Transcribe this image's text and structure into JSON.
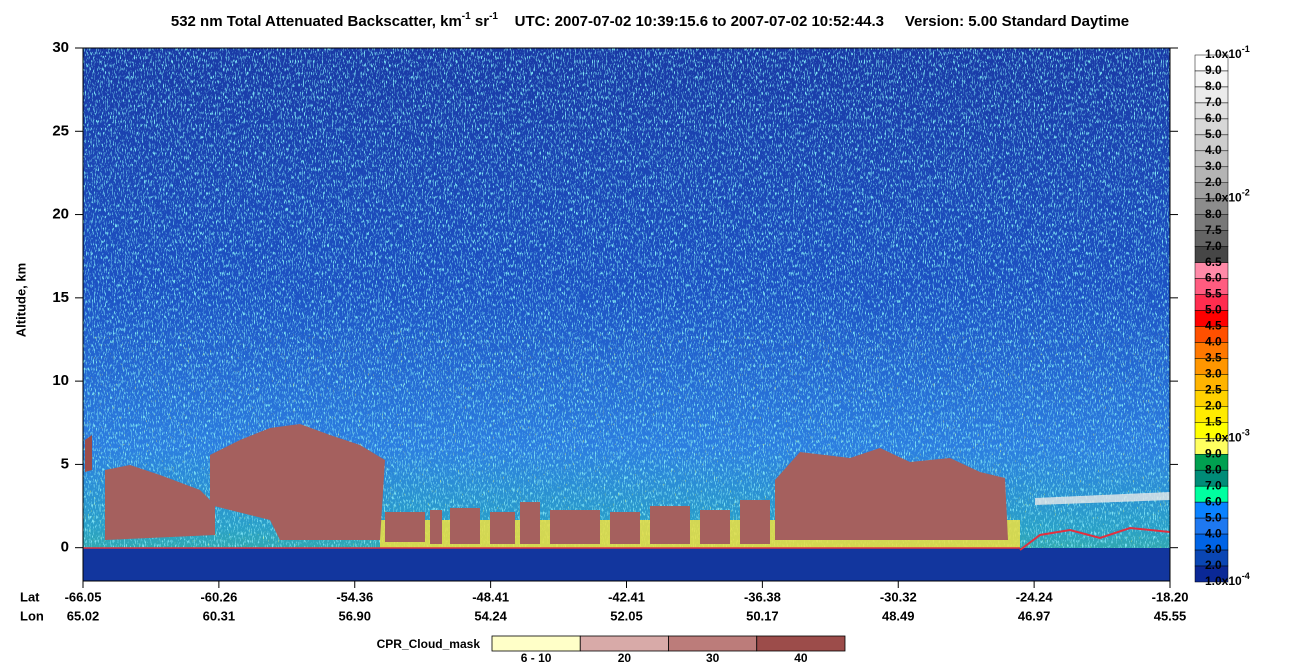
{
  "chart_data": {
    "type": "curtain",
    "title": {
      "name": "532 nm Total Attenuated Backscatter, km",
      "unit_exp1": "-1",
      "unit_mid": " sr",
      "unit_exp2": "-1",
      "time": "UTC:  2007-07-02 10:39:15.6  to  2007-07-02 10:52:44.3",
      "version": "Version: 5.00  Standard  Daytime"
    },
    "y_label": "Altitude, km",
    "ylim": [
      -2,
      30
    ],
    "yticks": [
      0,
      5,
      10,
      15,
      20,
      25,
      30
    ],
    "x_row_labels": [
      "Lat",
      "Lon"
    ],
    "lat": [
      "-66.05",
      "-60.26",
      "-54.36",
      "-48.41",
      "-42.41",
      "-36.38",
      "-30.32",
      "-24.24",
      "-18.20"
    ],
    "lon": [
      "65.02",
      "60.31",
      "56.90",
      "54.24",
      "52.05",
      "50.17",
      "48.49",
      "46.97",
      "45.55"
    ],
    "colorbar": {
      "labels": [
        {
          "mantissa": "1.0x10",
          "exponent": "-1"
        },
        "9.0",
        "8.0",
        "7.0",
        "6.0",
        "5.0",
        "4.0",
        "3.0",
        "2.0",
        {
          "mantissa": "1.0x10",
          "exponent": "-2"
        },
        "8.0",
        "7.5",
        "7.0",
        "6.5",
        "6.0",
        "5.5",
        "5.0",
        "4.5",
        "4.0",
        "3.5",
        "3.0",
        "2.5",
        "2.0",
        "1.5",
        {
          "mantissa": "1.0x10",
          "exponent": "-3"
        },
        "9.0",
        "8.0",
        "7.0",
        "6.0",
        "5.0",
        "4.0",
        "3.0",
        "2.0",
        {
          "mantissa": "1.0x10",
          "exponent": "-4"
        }
      ],
      "colors": [
        "#ffffff",
        "#f5f5f5",
        "#ebebeb",
        "#e1e1e1",
        "#d7d7d7",
        "#cdcdcd",
        "#c3c3c3",
        "#b4b4b4",
        "#a0a0a0",
        "#8c8c8c",
        "#787878",
        "#646464",
        "#464646",
        "#ff8aa8",
        "#ff5c80",
        "#ff2d4f",
        "#ff0000",
        "#ff5000",
        "#ff7800",
        "#ff9600",
        "#ffb400",
        "#ffd200",
        "#ffeb00",
        "#ffff00",
        "#ffff60",
        "#00a050",
        "#008c78",
        "#00ffa0",
        "#0a82ff",
        "#1e78f0",
        "#0064e6",
        "#0a46b4",
        "#0a2896"
      ]
    },
    "cpr_legend": {
      "title": "CPR_Cloud_mask",
      "labels": [
        "6 - 10",
        "20",
        "30",
        "40"
      ],
      "colors": [
        "#ffffc8",
        "#d8aaa8",
        "#bc7c7a",
        "#9c4c4a"
      ]
    }
  }
}
